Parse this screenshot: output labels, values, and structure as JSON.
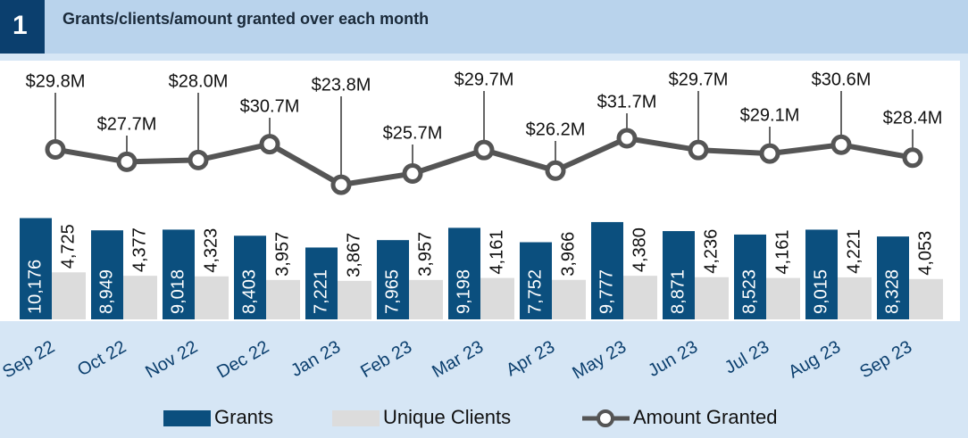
{
  "header": {
    "number": "1",
    "title": "Grants/clients/amount granted over each month"
  },
  "chart_data": {
    "type": "bar",
    "categories": [
      "Sep 22",
      "Oct 22",
      "Nov 22",
      "Dec 22",
      "Jan 23",
      "Feb 23",
      "Mar 23",
      "Apr 23",
      "May 23",
      "Jun 23",
      "Jul 23",
      "Aug 23",
      "Sep 23"
    ],
    "series": [
      {
        "name": "Grants",
        "type": "bar",
        "color": "#0b4f7e",
        "values": [
          10176,
          8949,
          9018,
          8403,
          7221,
          7965,
          9198,
          7752,
          9777,
          8871,
          8523,
          9015,
          8328
        ],
        "value_labels": [
          "10,176",
          "8,949",
          "9,018",
          "8,403",
          "7,221",
          "7,965",
          "9,198",
          "7,752",
          "9,777",
          "8,871",
          "8,523",
          "9,015",
          "8,328"
        ]
      },
      {
        "name": "Unique Clients",
        "type": "bar",
        "color": "#dcdcdc",
        "values": [
          4725,
          4377,
          4323,
          3957,
          3867,
          3957,
          4161,
          3966,
          4380,
          4236,
          4161,
          4221,
          4053
        ],
        "value_labels": [
          "4,725",
          "4,377",
          "4,323",
          "3,957",
          "3,867",
          "3,957",
          "4,161",
          "3,966",
          "4,380",
          "4,236",
          "4,161",
          "4,221",
          "4,053"
        ]
      },
      {
        "name": "Amount Granted",
        "type": "line",
        "axis": "y2",
        "color": "#555555",
        "values": [
          29.8,
          27.7,
          28.0,
          30.7,
          23.8,
          25.7,
          29.7,
          26.2,
          31.7,
          29.7,
          29.1,
          30.6,
          28.4
        ],
        "value_labels": [
          "$29.8M",
          "$27.7M",
          "$28.0M",
          "$30.7M",
          "$23.8M",
          "$25.7M",
          "$29.7M",
          "$26.2M",
          "$31.7M",
          "$29.7M",
          "$29.1M",
          "$30.6M",
          "$28.4M"
        ]
      }
    ],
    "ylim": [
      0,
      26000
    ],
    "y2lim": [
      0.9,
      44.9
    ],
    "legend": "bottom"
  }
}
